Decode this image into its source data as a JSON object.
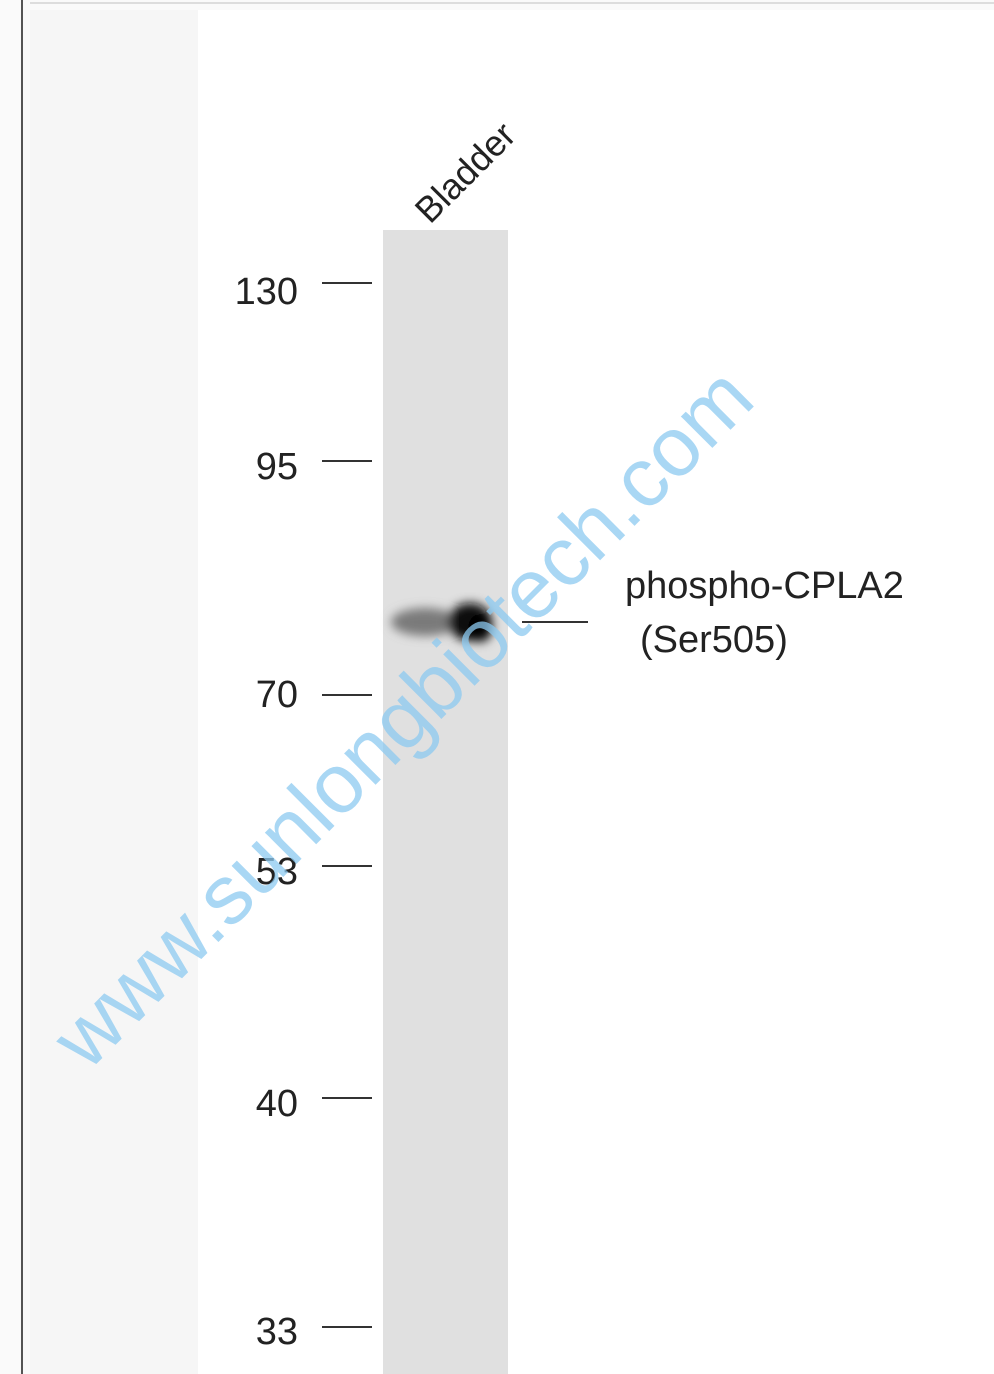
{
  "lane_label": "Bladder",
  "markers": [
    "130",
    "95",
    "70",
    "53",
    "40",
    "33"
  ],
  "band_label": {
    "line1": "phospho-CPLA2",
    "line2": "(Ser505)"
  },
  "watermark": "www.sunlongbiotech.com"
}
